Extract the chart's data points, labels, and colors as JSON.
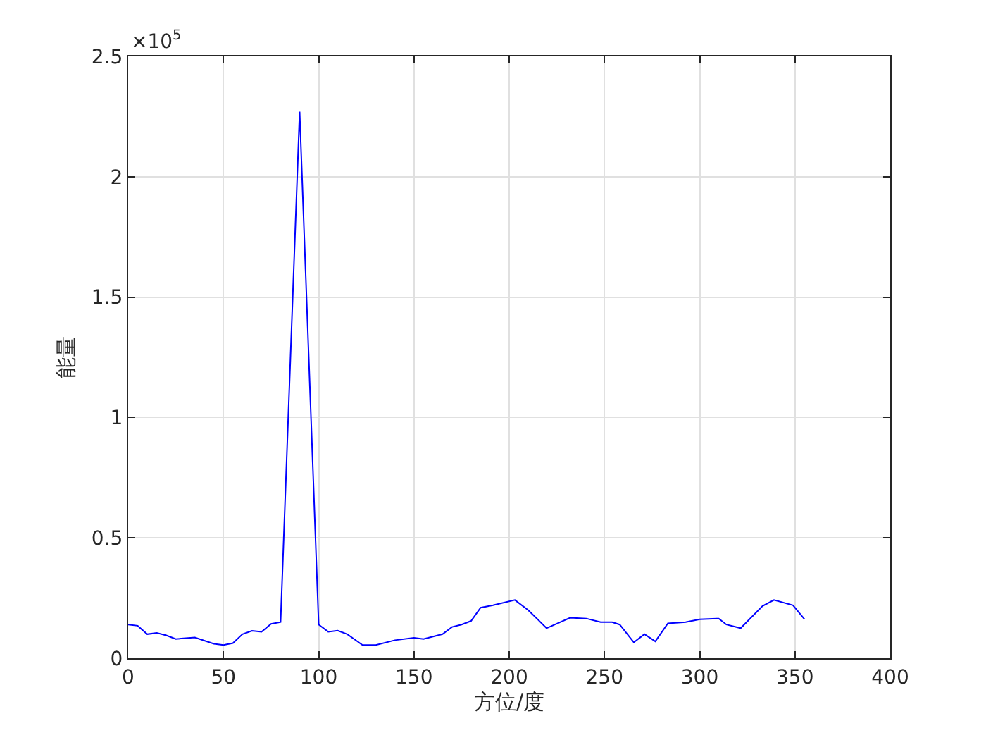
{
  "chart_data": {
    "type": "line",
    "xlabel": "方位/度",
    "ylabel": "能量",
    "annotations": [
      "×10$^{5}$"
    ],
    "xlim": [
      0,
      400
    ],
    "xticks": [
      0,
      50,
      100,
      150,
      200,
      250,
      300,
      350,
      400
    ],
    "ylim": [
      0,
      2.5
    ],
    "yticks": [
      0,
      0.5,
      1,
      1.5,
      2,
      2.5
    ],
    "grid": true,
    "marker": "none",
    "line_style": "solid",
    "series": [
      {
        "color": "#0000ff",
        "x": [
          0,
          5,
          10,
          15,
          20,
          25,
          35,
          45,
          50,
          55,
          60,
          65,
          70,
          75,
          80,
          90,
          100,
          105,
          110,
          115,
          123,
          130,
          140,
          150,
          155,
          165,
          170,
          175,
          180,
          185,
          191.5,
          203,
          210,
          219.6,
          232,
          240.5,
          248,
          254,
          258,
          265.4,
          271,
          276.7,
          283.3,
          292.6,
          300,
          310,
          314,
          321.5,
          333,
          339,
          349,
          355
        ],
        "values": [
          0.14,
          0.135,
          0.1,
          0.105,
          0.095,
          0.08,
          0.086,
          0.06,
          0.055,
          0.063,
          0.1,
          0.114,
          0.11,
          0.143,
          0.15,
          2.27,
          0.14,
          0.11,
          0.115,
          0.1,
          0.055,
          0.055,
          0.075,
          0.085,
          0.08,
          0.1,
          0.13,
          0.14,
          0.155,
          0.21,
          0.22,
          0.242,
          0.2,
          0.125,
          0.168,
          0.165,
          0.15,
          0.15,
          0.14,
          0.066,
          0.1,
          0.07,
          0.145,
          0.15,
          0.162,
          0.165,
          0.14,
          0.125,
          0.217,
          0.242,
          0.22,
          0.162
        ]
      }
    ]
  }
}
